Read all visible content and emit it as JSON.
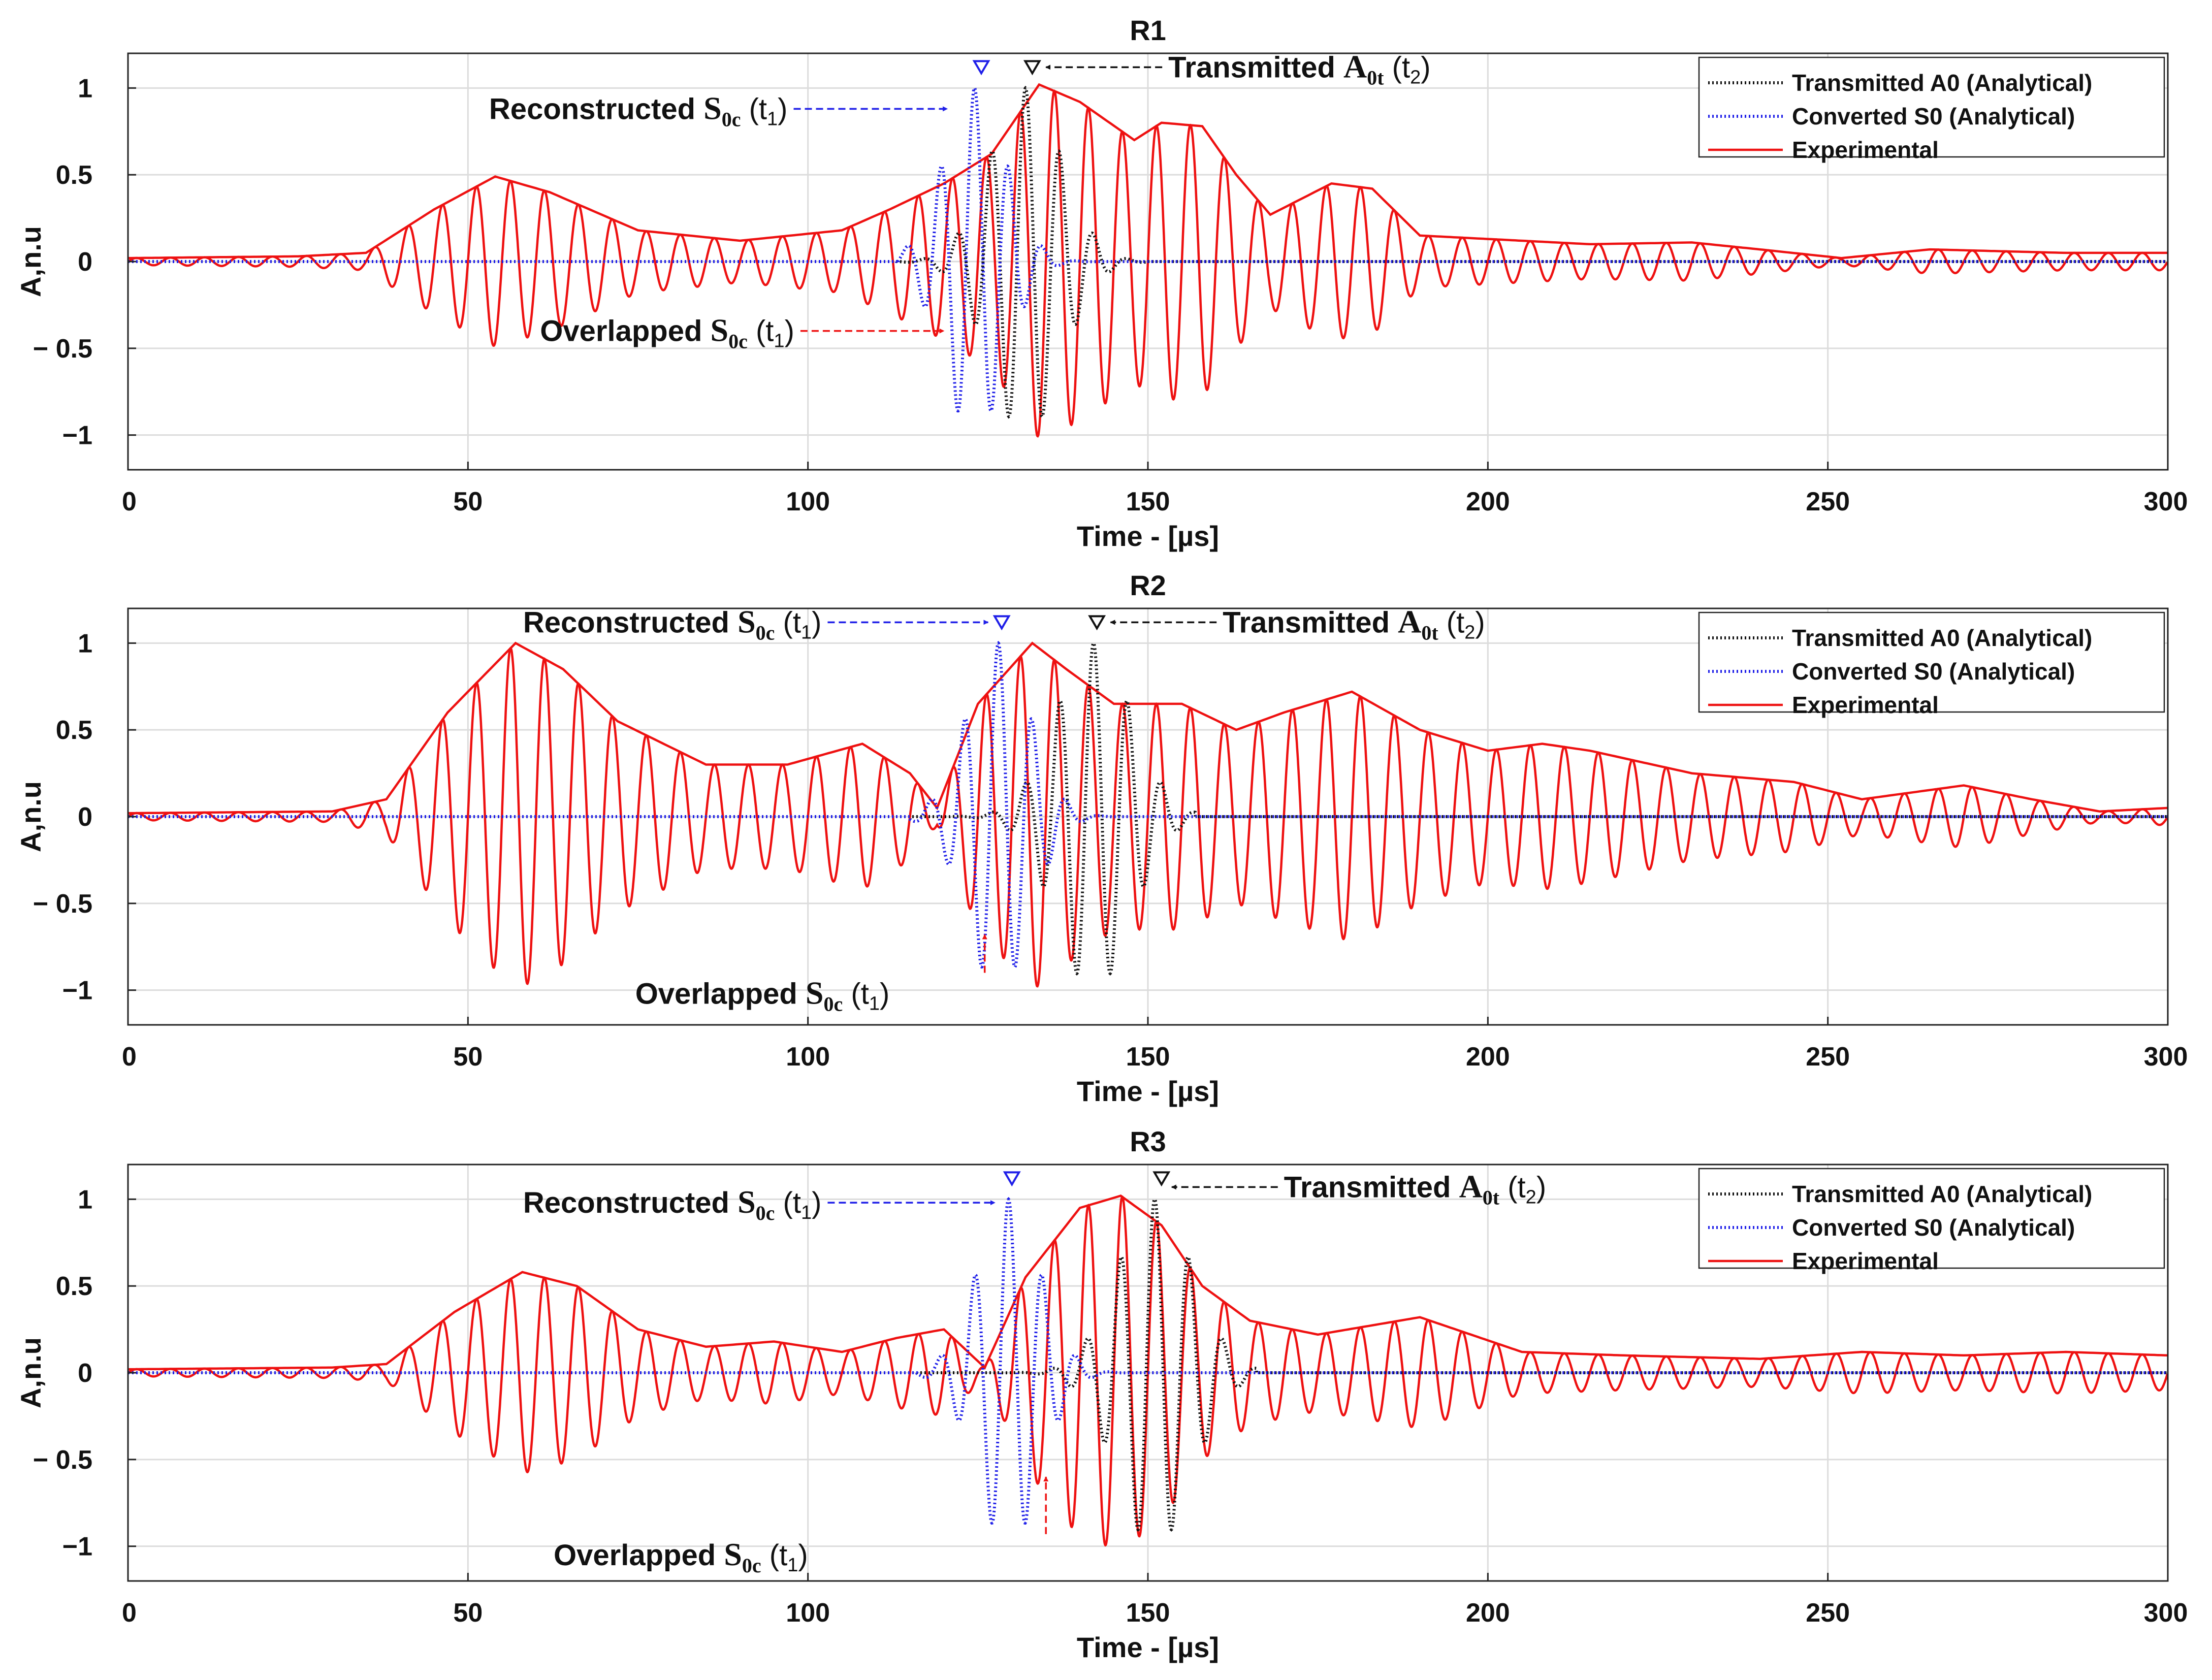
{
  "colors": {
    "transmitted": "#111111",
    "converted": "#1f1fe8",
    "experimental": "#ee1111",
    "grid": "#dcdcdc",
    "axis": "#222222"
  },
  "chart_data": [
    {
      "type": "line",
      "title": "R1",
      "xlabel": "Time - [µs]",
      "ylabel": "A,n.u",
      "xlim": [
        0,
        300
      ],
      "ylim": [
        -1.2,
        1.2
      ],
      "xticks": [
        0,
        50,
        100,
        150,
        200,
        250,
        300
      ],
      "yticks": [
        1,
        0.5,
        0,
        -0.5,
        -1
      ],
      "xtick_labels": [
        "0",
        "50",
        "100",
        "150",
        "200",
        "250",
        "300"
      ],
      "ytick_labels": [
        "1",
        "0.5",
        "0",
        "− 0.5",
        "−1"
      ],
      "grid": true,
      "legend_position": "top-right",
      "legend": [
        "Transmitted A0 (Analytical)",
        "Converted S0 (Analytical)",
        "Experimental"
      ],
      "series": [
        {
          "name": "Transmitted A0 (Analytical)",
          "style": "dotted",
          "center": 132,
          "sigma": 5.2,
          "amplitude": 1.0,
          "frequency_mhz": 0.2,
          "range": [
            113,
            150
          ]
        },
        {
          "name": "Converted S0 (Analytical)",
          "style": "dotted",
          "center": 124.5,
          "sigma": 4.5,
          "amplitude": 1.0,
          "frequency_mhz": 0.2,
          "range": [
            113,
            145
          ]
        },
        {
          "name": "Experimental",
          "style": "solid",
          "frequency_mhz": 0.2,
          "envelope": {
            "t": [
              0,
              25,
              35,
              45,
              54,
              62,
              75,
              90,
              105,
              112,
              120,
              127,
              134,
              140,
              148,
              152,
              158,
              163,
              168,
              177,
              183,
              190,
              200,
              215,
              230,
              240,
              252,
              265,
              275,
              285,
              300
            ],
            "a": [
              0.02,
              0.03,
              0.05,
              0.3,
              0.49,
              0.4,
              0.18,
              0.12,
              0.18,
              0.3,
              0.45,
              0.62,
              1.02,
              0.92,
              0.7,
              0.8,
              0.78,
              0.5,
              0.27,
              0.45,
              0.42,
              0.15,
              0.13,
              0.1,
              0.11,
              0.07,
              0.02,
              0.07,
              0.06,
              0.05,
              0.05
            ]
          }
        }
      ],
      "markers": [
        {
          "series": "Converted S0 (Analytical)",
          "x": 125.5,
          "y": 1.12
        },
        {
          "series": "Transmitted A0 (Analytical)",
          "x": 133,
          "y": 1.12
        }
      ],
      "annotations": [
        {
          "text": "Reconstructed S0c (t1)",
          "main": "Reconstructed ",
          "sym": "S",
          "sub": "0c",
          "tail": " (t",
          "tsub": "1",
          "end": ")",
          "color": "blue",
          "text_x": 97,
          "text_y": 0.88,
          "point_x": 120.5,
          "point_y": 0.88
        },
        {
          "text": "Transmitted A0t (t2)",
          "main": "Transmitted ",
          "sym": "A",
          "sub": "0t",
          "tail": " (t",
          "tsub": "2",
          "end": ")",
          "color": "black",
          "text_x": 153,
          "text_y": 1.12,
          "point_x": 135,
          "point_y": 1.12
        },
        {
          "text": "Overlapped S0c (t1)",
          "main": "Overlapped ",
          "sym": "S",
          "sub": "0c",
          "tail": " (t",
          "tsub": "1",
          "end": ")",
          "color": "red",
          "text_x": 98,
          "text_y": -0.4,
          "point_x": 120,
          "point_y": -0.4
        }
      ]
    },
    {
      "type": "line",
      "title": "R2",
      "xlabel": "Time - [µs]",
      "ylabel": "A,n.u",
      "xlim": [
        0,
        300
      ],
      "ylim": [
        -1.2,
        1.2
      ],
      "xticks": [
        0,
        50,
        100,
        150,
        200,
        250,
        300
      ],
      "yticks": [
        1,
        0.5,
        0,
        -0.5,
        -1
      ],
      "xtick_labels": [
        "0",
        "50",
        "100",
        "150",
        "200",
        "250",
        "300"
      ],
      "ytick_labels": [
        "1",
        "0.5",
        "0",
        "− 0.5",
        "−1"
      ],
      "grid": true,
      "legend_position": "top-right",
      "legend": [
        "Transmitted A0 (Analytical)",
        "Converted S0 (Analytical)",
        "Experimental"
      ],
      "series": [
        {
          "name": "Transmitted A0 (Analytical)",
          "style": "dotted",
          "center": 142,
          "sigma": 5.5,
          "amplitude": 1.0,
          "frequency_mhz": 0.2,
          "range": [
            118,
            157
          ]
        },
        {
          "name": "Converted S0 (Analytical)",
          "style": "dotted",
          "center": 128,
          "sigma": 4.6,
          "amplitude": 1.0,
          "frequency_mhz": 0.2,
          "range": [
            115,
            150
          ]
        },
        {
          "name": "Experimental",
          "style": "solid",
          "frequency_mhz": 0.2,
          "envelope": {
            "t": [
              0,
              30,
              38,
              47,
              57,
              64,
              72,
              85,
              97,
              108,
              115,
              119,
              125,
              133,
              138,
              145,
              155,
              163,
              170,
              180,
              190,
              200,
              208,
              215,
              230,
              245,
              255,
              270,
              280,
              290,
              300
            ],
            "a": [
              0.02,
              0.03,
              0.1,
              0.6,
              1.0,
              0.85,
              0.55,
              0.3,
              0.3,
              0.42,
              0.25,
              0.05,
              0.65,
              1.0,
              0.85,
              0.65,
              0.65,
              0.5,
              0.6,
              0.72,
              0.5,
              0.38,
              0.42,
              0.38,
              0.25,
              0.2,
              0.1,
              0.18,
              0.1,
              0.03,
              0.05
            ]
          }
        }
      ],
      "markers": [
        {
          "series": "Converted S0 (Analytical)",
          "x": 128.5,
          "y": 1.12
        },
        {
          "series": "Transmitted A0 (Analytical)",
          "x": 142.5,
          "y": 1.12
        }
      ],
      "annotations": [
        {
          "text": "Reconstructed S0c (t1)",
          "main": "Reconstructed ",
          "sym": "S",
          "sub": "0c",
          "tail": " (t",
          "tsub": "1",
          "end": ")",
          "color": "blue",
          "text_x": 102,
          "text_y": 1.12,
          "point_x": 126.5,
          "point_y": 1.12
        },
        {
          "text": "Transmitted A0t (t2)",
          "main": "Transmitted ",
          "sym": "A",
          "sub": "0t",
          "tail": " (t",
          "tsub": "2",
          "end": ")",
          "color": "black",
          "text_x": 161,
          "text_y": 1.12,
          "point_x": 144.5,
          "point_y": 1.12
        },
        {
          "text": "Overlapped S0c (t1)",
          "main": "Overlapped ",
          "sym": "S",
          "sub": "0c",
          "tail": " (t",
          "tsub": "1",
          "end": ")",
          "color": "red",
          "text_x": 112,
          "text_y": -1.02,
          "point_x": 126,
          "point_y": -0.68
        }
      ]
    },
    {
      "type": "line",
      "title": "R3",
      "xlabel": "Time - [µs]",
      "ylabel": "A,n.u",
      "xlim": [
        0,
        300
      ],
      "ylim": [
        -1.2,
        1.2
      ],
      "xticks": [
        0,
        50,
        100,
        150,
        200,
        250,
        300
      ],
      "yticks": [
        1,
        0.5,
        0,
        -0.5,
        -1
      ],
      "xtick_labels": [
        "0",
        "50",
        "100",
        "150",
        "200",
        "250",
        "300"
      ],
      "ytick_labels": [
        "1",
        "0.5",
        "0",
        "− 0.5",
        "−1"
      ],
      "grid": true,
      "legend_position": "top-right",
      "legend": [
        "Transmitted A0 (Analytical)",
        "Converted S0 (Analytical)",
        "Experimental"
      ],
      "series": [
        {
          "name": "Transmitted A0 (Analytical)",
          "style": "dotted",
          "center": 151,
          "sigma": 5.5,
          "amplitude": 1.0,
          "frequency_mhz": 0.2,
          "range": [
            127,
            166
          ]
        },
        {
          "name": "Converted S0 (Analytical)",
          "style": "dotted",
          "center": 129.5,
          "sigma": 4.6,
          "amplitude": 1.0,
          "frequency_mhz": 0.2,
          "range": [
            116,
            152
          ]
        },
        {
          "name": "Experimental",
          "style": "solid",
          "frequency_mhz": 0.2,
          "envelope": {
            "t": [
              0,
              30,
              38,
              48,
              58,
              66,
              75,
              85,
              95,
              105,
              113,
              120,
              126,
              132,
              140,
              146,
              152,
              158,
              165,
              175,
              190,
              205,
              220,
              240,
              255,
              270,
              285,
              300
            ],
            "a": [
              0.02,
              0.03,
              0.05,
              0.35,
              0.58,
              0.5,
              0.25,
              0.15,
              0.18,
              0.12,
              0.2,
              0.25,
              0.03,
              0.55,
              0.95,
              1.02,
              0.85,
              0.5,
              0.3,
              0.22,
              0.32,
              0.12,
              0.1,
              0.08,
              0.12,
              0.1,
              0.12,
              0.1
            ]
          }
        }
      ],
      "markers": [
        {
          "series": "Converted S0 (Analytical)",
          "x": 130,
          "y": 1.12
        },
        {
          "series": "Transmitted A0 (Analytical)",
          "x": 152,
          "y": 1.12
        }
      ],
      "annotations": [
        {
          "text": "Reconstructed S0c (t1)",
          "main": "Reconstructed ",
          "sym": "S",
          "sub": "0c",
          "tail": " (t",
          "tsub": "1",
          "end": ")",
          "color": "blue",
          "text_x": 102,
          "text_y": 0.98,
          "point_x": 127.5,
          "point_y": 0.98
        },
        {
          "text": "Transmitted A0t (t2)",
          "main": "Transmitted ",
          "sym": "A",
          "sub": "0t",
          "tail": " (t",
          "tsub": "2",
          "end": ")",
          "color": "black",
          "text_x": 170,
          "text_y": 1.07,
          "point_x": 153.5,
          "point_y": 1.07
        },
        {
          "text": "Overlapped S0c (t1)",
          "main": "Overlapped ",
          "sym": "S",
          "sub": "0c",
          "tail": " (t",
          "tsub": "1",
          "end": ")",
          "color": "red",
          "text_x": 100,
          "text_y": -1.05,
          "point_x": 135,
          "point_y": -0.6
        }
      ]
    }
  ]
}
